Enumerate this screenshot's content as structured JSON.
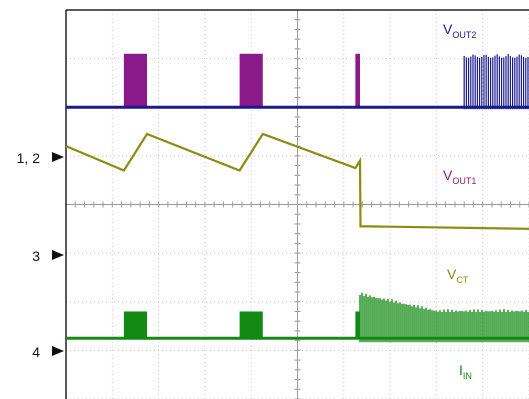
{
  "chart_data": {
    "type": "line",
    "title": "",
    "xlabel": "",
    "ylabel": "",
    "grid": true,
    "grid_divisions": {
      "x": 10,
      "y": 8
    },
    "ylim": [
      0,
      8
    ],
    "channel_markers": [
      {
        "label": "1, 2",
        "level_div": 6.0
      },
      {
        "label": "3",
        "level_div": 3.5
      },
      {
        "label": "4",
        "level_div": 1.25
      }
    ],
    "series": [
      {
        "key": "vout2",
        "label_main": "V",
        "label_sub": "OUT2",
        "color": "#1a1a8c",
        "baseline_div": 6.0,
        "bursts_div": [
          [
            8.6,
            10.0,
            7.1
          ]
        ]
      },
      {
        "key": "vout1",
        "label_main": "V",
        "label_sub": "OUT1",
        "color": "#8a1a8a",
        "baseline_div": 6.0,
        "pulses_div": [
          [
            1.25,
            1.75,
            7.1
          ],
          [
            3.75,
            4.25,
            7.1
          ],
          [
            6.25,
            6.35,
            7.1
          ]
        ]
      },
      {
        "key": "vct",
        "label_main": "V",
        "label_sub": "CT",
        "color": "#8c8c14",
        "x_div": [
          0.0,
          1.25,
          1.75,
          3.75,
          4.25,
          6.25,
          6.35,
          6.36,
          6.55,
          10.0
        ],
        "y_div": [
          5.2,
          4.7,
          5.45,
          4.7,
          5.45,
          4.75,
          4.9,
          3.55,
          3.55,
          3.5
        ]
      },
      {
        "key": "iin",
        "label_main": "I",
        "label_sub": "IN",
        "color": "#138a13",
        "baseline_div": 1.25,
        "pulses_div": [
          [
            1.25,
            1.75,
            1.8
          ],
          [
            3.75,
            4.25,
            1.8
          ],
          [
            6.25,
            6.35,
            1.8
          ]
        ],
        "bursts_div": [
          [
            6.35,
            10.0,
            2.2
          ]
        ]
      }
    ]
  },
  "labels": {
    "ch12": "1, 2",
    "ch3": "3",
    "ch4": "4"
  },
  "colors": {
    "grid": "#c8c8c8",
    "frame": "#222222",
    "marker": "#111111"
  }
}
